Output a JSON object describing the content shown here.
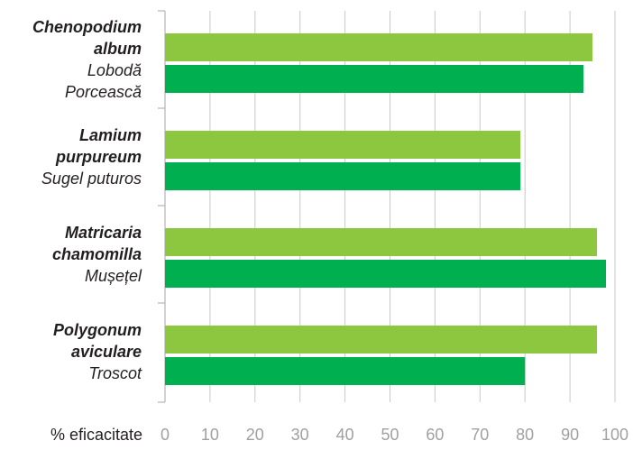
{
  "chart_data": {
    "type": "bar",
    "orientation": "horizontal",
    "categories": [
      {
        "latin": [
          "Chenopodium",
          "album"
        ],
        "common": [
          "Lobodă",
          "Porcească"
        ]
      },
      {
        "latin": [
          "Lamium",
          "purpureum"
        ],
        "common": [
          "Sugel puturos"
        ]
      },
      {
        "latin": [
          "Matricaria",
          "chamomilla"
        ],
        "common": [
          "Mușețel"
        ]
      },
      {
        "latin": [
          "Polygonum",
          "aviculare"
        ],
        "common": [
          "Troscot"
        ]
      }
    ],
    "series": [
      {
        "color": "#8dc63f",
        "values": [
          95,
          79,
          96,
          96
        ]
      },
      {
        "color": "#00b050",
        "values": [
          93,
          79,
          98,
          80
        ]
      }
    ],
    "xlabel": "% eficacitate",
    "xlim": [
      0,
      100
    ],
    "xticks": [
      "0",
      "10",
      "20",
      "30",
      "40",
      "50",
      "60",
      "70",
      "80",
      "90",
      "100"
    ],
    "grid": "vertical",
    "legend": "none"
  }
}
